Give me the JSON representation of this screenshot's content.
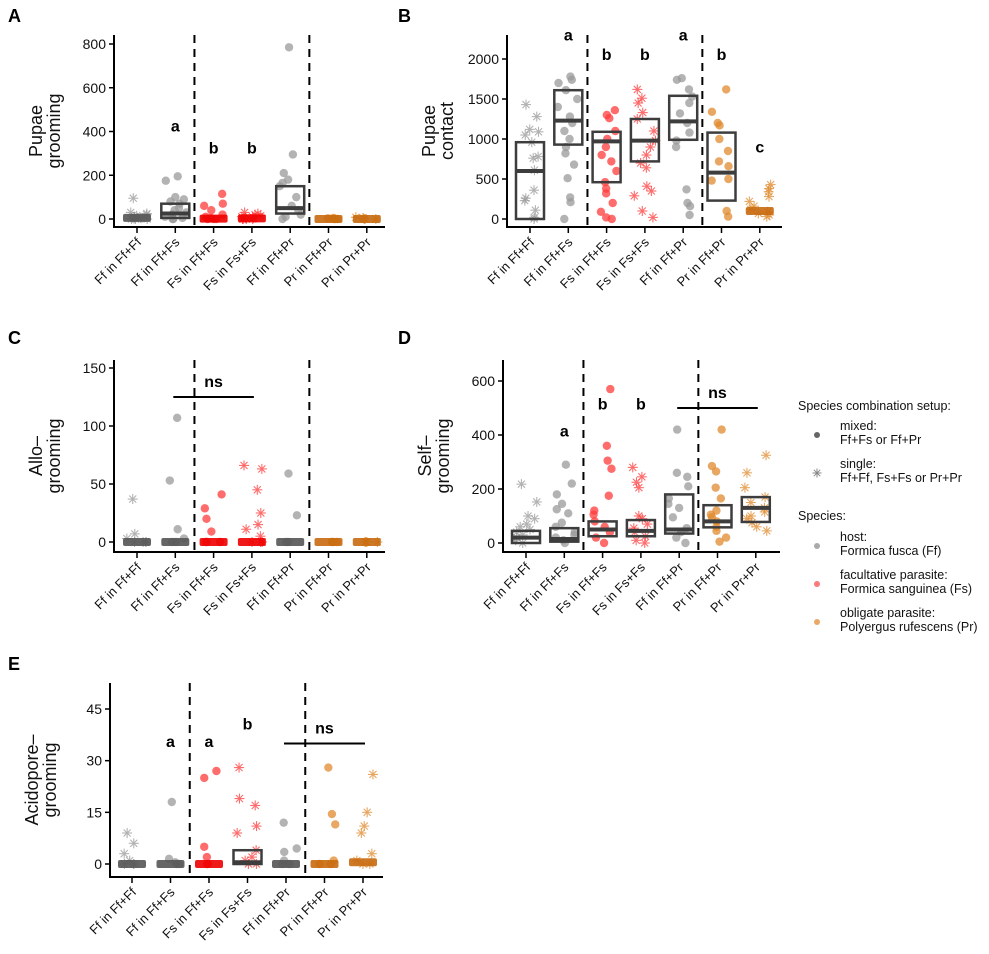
{
  "chart_data": {
    "type": "scatter",
    "categories": [
      "Ff in Ff+Ff",
      "Ff in Ff+Fs",
      "Fs in Ff+Fs",
      "Fs in Fs+Fs",
      "Ff in Ff+Pr",
      "Pr in Ff+Pr",
      "Pr in Pr+Pr"
    ],
    "category_species": [
      "Ff",
      "Ff",
      "Fs",
      "Fs",
      "Ff",
      "Pr",
      "Pr"
    ],
    "category_setup": [
      "single",
      "mixed",
      "mixed",
      "single",
      "mixed",
      "mixed",
      "single"
    ],
    "colors": {
      "Ff": "#999999",
      "Fs": "#ff3b3b",
      "Pr": "#e08a2e",
      "box": "#3d3d3d"
    },
    "panels": [
      {
        "letter": "A",
        "ylabel": [
          "Pupae",
          "grooming"
        ],
        "yticks": [
          0,
          200,
          400,
          600,
          800
        ],
        "ylim": [
          0,
          800
        ],
        "separators_after": [
          1,
          4
        ],
        "boxes": [
          {
            "q1": 0,
            "median": 5,
            "q3": 15
          },
          {
            "q1": 5,
            "median": 25,
            "q3": 70
          },
          {
            "q1": 0,
            "median": 2,
            "q3": 10
          },
          {
            "q1": 0,
            "median": 3,
            "q3": 12
          },
          {
            "q1": 25,
            "median": 50,
            "q3": 150
          },
          {
            "q1": 0,
            "median": 0,
            "q3": 5
          },
          {
            "q1": 0,
            "median": 0,
            "q3": 5
          }
        ],
        "points": [
          [
            95,
            30,
            20,
            10,
            5,
            0,
            0,
            0,
            10,
            15,
            25,
            5,
            2
          ],
          [
            195,
            175,
            100,
            90,
            80,
            70,
            50,
            40,
            30,
            20,
            10,
            5,
            0,
            0
          ],
          [
            115,
            70,
            60,
            40,
            20,
            10,
            5,
            0,
            0,
            0
          ],
          [
            30,
            25,
            20,
            15,
            10,
            5,
            0,
            0,
            0,
            0,
            5,
            10
          ],
          [
            785,
            295,
            210,
            180,
            165,
            150,
            100,
            60,
            40,
            20,
            10,
            0
          ],
          [
            5,
            3,
            0,
            0,
            0
          ],
          [
            8,
            5,
            3,
            0,
            0,
            0
          ]
        ],
        "letters": [
          null,
          "a",
          "b",
          "b",
          null,
          null,
          null
        ],
        "letter_values": [
          null,
          400,
          300,
          300,
          null,
          null,
          null
        ],
        "ns": null
      },
      {
        "letter": "B",
        "ylabel": [
          "Pupae",
          "contact"
        ],
        "yticks": [
          0,
          500,
          1000,
          1500,
          2000
        ],
        "ylim": [
          0,
          2250
        ],
        "separators_after": [
          1,
          4
        ],
        "boxes": [
          {
            "q1": 0,
            "median": 600,
            "q3": 960
          },
          {
            "q1": 930,
            "median": 1230,
            "q3": 1610
          },
          {
            "q1": 460,
            "median": 970,
            "q3": 1090
          },
          {
            "q1": 720,
            "median": 980,
            "q3": 1250
          },
          {
            "q1": 990,
            "median": 1220,
            "q3": 1540
          },
          {
            "q1": 230,
            "median": 580,
            "q3": 1080
          },
          {
            "q1": 50,
            "median": 100,
            "q3": 140
          }
        ],
        "points": [
          [
            1430,
            1280,
            1120,
            1090,
            1050,
            960,
            780,
            760,
            610,
            360,
            260,
            230,
            110,
            20,
            0
          ],
          [
            1780,
            1740,
            1700,
            1610,
            1500,
            1400,
            1280,
            1200,
            1100,
            1000,
            900,
            820,
            680,
            510,
            270,
            210,
            0
          ],
          [
            1360,
            1300,
            1260,
            1100,
            1000,
            900,
            800,
            720,
            600,
            460,
            380,
            320,
            200,
            90,
            20,
            0
          ],
          [
            1620,
            1510,
            1450,
            1330,
            1250,
            1100,
            980,
            900,
            800,
            700,
            640,
            410,
            350,
            290,
            100,
            20
          ],
          [
            1760,
            1740,
            1620,
            1530,
            1450,
            1320,
            1200,
            1080,
            980,
            900,
            370,
            200,
            160,
            50
          ],
          [
            1620,
            1340,
            1200,
            1170,
            1000,
            850,
            720,
            660,
            500,
            480,
            100,
            30
          ],
          [
            430,
            380,
            340,
            280,
            220,
            160,
            120,
            90,
            70,
            50,
            30
          ]
        ],
        "letters": [
          null,
          "a",
          "b",
          "b",
          "a",
          "b",
          "c"
        ],
        "letter_values": [
          null,
          2230,
          1990,
          1990,
          2230,
          1990,
          830
        ],
        "ns": null
      },
      {
        "letter": "C",
        "ylabel": [
          "Allo–",
          "grooming"
        ],
        "yticks": [
          0,
          50,
          100,
          150
        ],
        "ylim": [
          0,
          150
        ],
        "separators_after": [
          1,
          4
        ],
        "boxes": [
          {
            "q1": 0,
            "median": 0,
            "q3": 1
          },
          {
            "q1": 0,
            "median": 0,
            "q3": 1
          },
          {
            "q1": 0,
            "median": 0,
            "q3": 1
          },
          {
            "q1": 0,
            "median": 0,
            "q3": 1
          },
          {
            "q1": 0,
            "median": 0,
            "q3": 1
          },
          {
            "q1": 0,
            "median": 0,
            "q3": 1
          },
          {
            "q1": 0,
            "median": 0,
            "q3": 1
          }
        ],
        "points": [
          [
            37,
            7,
            3,
            0,
            0,
            0,
            0
          ],
          [
            107,
            53,
            11,
            3,
            0,
            0
          ],
          [
            41,
            29,
            20,
            9,
            0,
            0,
            0
          ],
          [
            66,
            63,
            45,
            25,
            15,
            11,
            5,
            0,
            0,
            0
          ],
          [
            59,
            23,
            0,
            0
          ],
          [
            0,
            0,
            0
          ],
          [
            0,
            0,
            0,
            0
          ]
        ],
        "letters": [
          null,
          null,
          null,
          null,
          null,
          null,
          null
        ],
        "letter_values": [
          null,
          null,
          null,
          null,
          null,
          null,
          null
        ],
        "ns": {
          "label": "ns",
          "from": 1,
          "to": 3,
          "value": 125
        }
      },
      {
        "letter": "D",
        "ylabel": [
          "Self–",
          "grooming"
        ],
        "yticks": [
          0,
          200,
          400,
          600
        ],
        "ylim": [
          0,
          680
        ],
        "separators_after": [
          1,
          4
        ],
        "boxes": [
          {
            "q1": 0,
            "median": 20,
            "q3": 45
          },
          {
            "q1": 5,
            "median": 15,
            "q3": 55
          },
          {
            "q1": 25,
            "median": 50,
            "q3": 80
          },
          {
            "q1": 25,
            "median": 45,
            "q3": 85
          },
          {
            "q1": 35,
            "median": 50,
            "q3": 180
          },
          {
            "q1": 58,
            "median": 80,
            "q3": 140
          },
          {
            "q1": 78,
            "median": 130,
            "q3": 170
          }
        ],
        "points": [
          [
            218,
            152,
            100,
            90,
            70,
            60,
            50,
            40,
            30,
            20,
            10,
            0
          ],
          [
            290,
            220,
            180,
            145,
            125,
            110,
            75,
            60,
            40,
            30,
            20,
            10,
            0
          ],
          [
            570,
            360,
            305,
            275,
            175,
            120,
            105,
            80,
            60,
            40,
            20,
            0
          ],
          [
            280,
            245,
            225,
            205,
            100,
            90,
            70,
            55,
            40,
            25,
            10,
            0
          ],
          [
            420,
            260,
            245,
            210,
            165,
            145,
            130,
            95,
            55,
            40,
            20,
            0
          ],
          [
            420,
            285,
            265,
            205,
            165,
            120,
            105,
            95,
            80,
            60,
            45,
            20,
            5
          ],
          [
            325,
            260,
            205,
            170,
            150,
            130,
            115,
            100,
            90,
            75,
            60,
            45
          ]
        ],
        "letters": [
          null,
          "a",
          "b",
          "b",
          null,
          null,
          null
        ],
        "letter_values": [
          null,
          395,
          495,
          495,
          null,
          null,
          null
        ],
        "ns": {
          "label": "ns",
          "from": 4,
          "to": 6,
          "value": 500
        }
      },
      {
        "letter": "E",
        "ylabel": [
          "Acidopore–",
          "grooming"
        ],
        "yticks": [
          0,
          15,
          30,
          45
        ],
        "ylim": [
          0,
          52
        ],
        "separators_after": [
          1,
          4
        ],
        "boxes": [
          {
            "q1": 0,
            "median": 0,
            "q3": 0.3
          },
          {
            "q1": 0,
            "median": 0,
            "q3": 0.3
          },
          {
            "q1": 0,
            "median": 0,
            "q3": 0.3
          },
          {
            "q1": 0,
            "median": 0.5,
            "q3": 4
          },
          {
            "q1": 0,
            "median": 0,
            "q3": 0.3
          },
          {
            "q1": 0,
            "median": 0,
            "q3": 0.3
          },
          {
            "q1": 0,
            "median": 0.5,
            "q3": 1.5
          }
        ],
        "points": [
          [
            9,
            6,
            3,
            1,
            0,
            0,
            0
          ],
          [
            18,
            1.5,
            0.5,
            0,
            0
          ],
          [
            27,
            25,
            5,
            2,
            0,
            0
          ],
          [
            28,
            19,
            17,
            11,
            9,
            4,
            2,
            1,
            0,
            0
          ],
          [
            12,
            4.5,
            3.5,
            1,
            0,
            0
          ],
          [
            28,
            14.5,
            11.5,
            1,
            0,
            0
          ],
          [
            26,
            15,
            11,
            9,
            3,
            1,
            0,
            0
          ]
        ],
        "letters": [
          null,
          "a",
          "a",
          "b",
          null,
          null,
          null
        ],
        "letter_values": [
          null,
          34,
          34,
          39,
          null,
          null,
          null
        ],
        "ns": {
          "label": "ns",
          "from": 4,
          "to": 6,
          "value": 35
        }
      }
    ],
    "legend": {
      "setup_title": "Species combination setup:",
      "setup_items": [
        {
          "symbol": "dot",
          "line1": "mixed:",
          "line2": "Ff+Fs or Ff+Pr"
        },
        {
          "symbol": "asterisk",
          "line1": "single:",
          "line2": "Ff+Ff, Fs+Fs or Pr+Pr"
        }
      ],
      "species_title": "Species:",
      "species_items": [
        {
          "key": "Ff",
          "line1": "host:",
          "line2": "Formica fusca (Ff)"
        },
        {
          "key": "Fs",
          "line1": "facultative parasite:",
          "line2": "Formica sanguinea (Fs)"
        },
        {
          "key": "Pr",
          "line1": "obligate parasite:",
          "line2": "Polyergus rufescens (Pr)"
        }
      ],
      "placement": "right"
    }
  }
}
